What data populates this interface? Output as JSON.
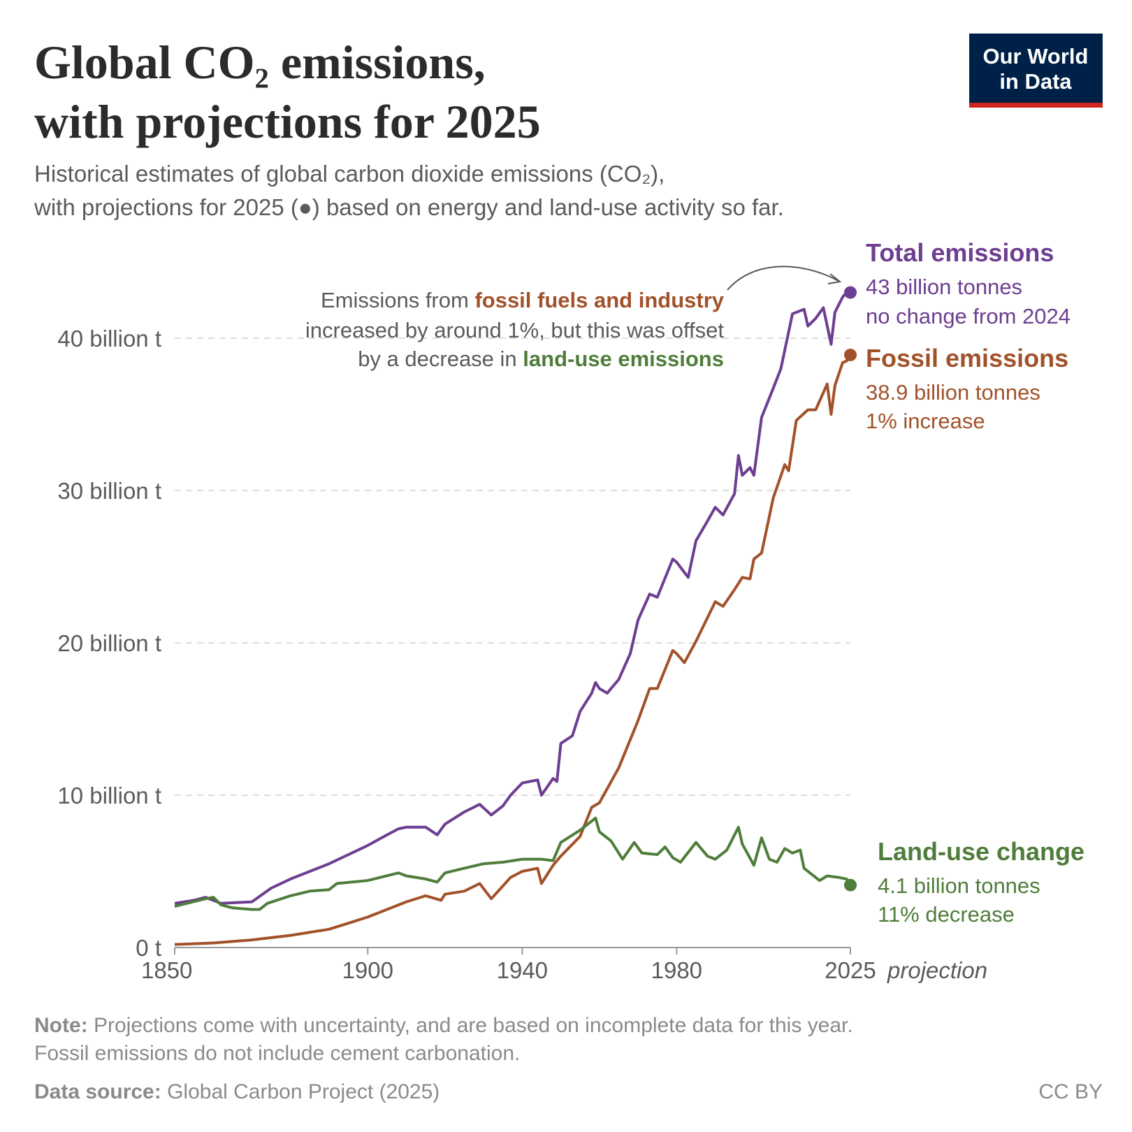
{
  "chart_data": {
    "type": "line",
    "title_lines": [
      "Global CO₂ emissions,",
      "with projections for 2025"
    ],
    "subtitle_lines": [
      "Historical estimates of global carbon dioxide emissions (CO₂),",
      "with projections for 2025 (●) based on energy and land-use activity so far."
    ],
    "logo_lines": [
      "Our World",
      "in Data"
    ],
    "xlim": [
      1850,
      2025
    ],
    "xticks": [
      1850,
      1900,
      1940,
      1980,
      2025
    ],
    "x_projection_label": "projection",
    "ylim": [
      0,
      43
    ],
    "yticks": [
      {
        "value": 0,
        "label": "0 t"
      },
      {
        "value": 10,
        "label": "10 billion t"
      },
      {
        "value": 20,
        "label": "20 billion t"
      },
      {
        "value": 30,
        "label": "30 billion t"
      },
      {
        "value": 40,
        "label": "40 billion t"
      }
    ],
    "grid": true,
    "annotation": {
      "lines": [
        [
          {
            "text": "Emissions from "
          },
          {
            "text": "fossil fuels and industry",
            "series": 1
          }
        ],
        [
          {
            "text": "increased by around 1%, but this was offset"
          }
        ],
        [
          {
            "text": "by a decrease in "
          },
          {
            "text": "land-use emissions",
            "series": 2
          }
        ]
      ]
    },
    "series": [
      {
        "name": "Total emissions",
        "color": "#6d3e91",
        "end_label": "43 billion tonnes",
        "change": "no change from 2024",
        "x": [
          1850,
          1855,
          1858,
          1862,
          1870,
          1875,
          1880,
          1885,
          1890,
          1895,
          1900,
          1905,
          1908,
          1910,
          1915,
          1918,
          1920,
          1925,
          1929,
          1932,
          1935,
          1937,
          1940,
          1944,
          1945,
          1948,
          1949,
          1950,
          1953,
          1955,
          1958,
          1959,
          1960,
          1962,
          1965,
          1968,
          1970,
          1973,
          1975,
          1979,
          1980,
          1983,
          1985,
          1988,
          1990,
          1992,
          1995,
          1996,
          1997,
          1999,
          2000,
          2002,
          2005,
          2007,
          2010,
          2013,
          2014,
          2016,
          2018,
          2020,
          2021,
          2023,
          2024,
          2025
        ],
        "values": [
          2.9,
          3.1,
          3.3,
          2.9,
          3.0,
          3.9,
          4.5,
          5.0,
          5.5,
          6.1,
          6.7,
          7.4,
          7.8,
          7.9,
          7.9,
          7.4,
          8.1,
          8.9,
          9.4,
          8.7,
          9.3,
          10.0,
          10.8,
          11.0,
          10.0,
          11.1,
          10.9,
          13.4,
          13.9,
          15.5,
          16.7,
          17.4,
          17.0,
          16.7,
          17.6,
          19.3,
          21.5,
          23.2,
          23.0,
          25.5,
          25.3,
          24.3,
          26.7,
          28.0,
          28.9,
          28.4,
          29.8,
          32.3,
          31.0,
          31.5,
          31.0,
          34.8,
          36.7,
          38.0,
          41.6,
          41.9,
          40.8,
          41.3,
          42.0,
          39.6,
          41.7,
          42.7,
          43.0,
          43.0
        ]
      },
      {
        "name": "Fossil emissions",
        "color": "#a2522a",
        "end_label": "38.9 billion tonnes",
        "change": "1% increase",
        "x": [
          1850,
          1860,
          1870,
          1880,
          1890,
          1900,
          1905,
          1910,
          1915,
          1919,
          1920,
          1925,
          1929,
          1932,
          1937,
          1940,
          1944,
          1945,
          1948,
          1950,
          1955,
          1958,
          1960,
          1965,
          1970,
          1973,
          1975,
          1979,
          1980,
          1982,
          1985,
          1990,
          1992,
          1995,
          1997,
          1999,
          2000,
          2002,
          2005,
          2008,
          2009,
          2011,
          2014,
          2016,
          2019,
          2020,
          2021,
          2023,
          2024,
          2025
        ],
        "values": [
          0.2,
          0.3,
          0.5,
          0.8,
          1.2,
          2.0,
          2.5,
          3.0,
          3.4,
          3.1,
          3.5,
          3.7,
          4.2,
          3.2,
          4.6,
          5.0,
          5.2,
          4.2,
          5.4,
          6.0,
          7.3,
          9.2,
          9.5,
          11.8,
          14.9,
          17.0,
          17.0,
          19.5,
          19.3,
          18.7,
          20.1,
          22.7,
          22.4,
          23.5,
          24.3,
          24.2,
          25.5,
          25.9,
          29.5,
          31.7,
          31.3,
          34.6,
          35.3,
          35.3,
          37.0,
          35.0,
          36.9,
          38.4,
          38.5,
          38.9
        ]
      },
      {
        "name": "Land-use change",
        "color": "#4f7d3b",
        "end_label": "4.1 billion tonnes",
        "change": "11% decrease",
        "x": [
          1850,
          1858,
          1860,
          1862,
          1865,
          1870,
          1872,
          1874,
          1880,
          1885,
          1890,
          1892,
          1900,
          1908,
          1910,
          1915,
          1918,
          1920,
          1925,
          1930,
          1935,
          1940,
          1945,
          1948,
          1950,
          1955,
          1959,
          1960,
          1963,
          1966,
          1969,
          1971,
          1975,
          1977,
          1979,
          1981,
          1985,
          1988,
          1990,
          1993,
          1996,
          1997,
          2000,
          2002,
          2004,
          2006,
          2008,
          2010,
          2012,
          2013,
          2016,
          2017,
          2019,
          2022,
          2024,
          2025
        ],
        "values": [
          2.7,
          3.2,
          3.3,
          2.8,
          2.6,
          2.5,
          2.5,
          2.9,
          3.4,
          3.7,
          3.8,
          4.2,
          4.4,
          4.9,
          4.7,
          4.5,
          4.3,
          4.9,
          5.2,
          5.5,
          5.6,
          5.8,
          5.8,
          5.7,
          6.9,
          7.7,
          8.5,
          7.6,
          7.0,
          5.8,
          6.9,
          6.2,
          6.1,
          6.6,
          5.9,
          5.6,
          6.9,
          6.0,
          5.8,
          6.4,
          7.9,
          6.8,
          5.4,
          7.2,
          5.8,
          5.6,
          6.5,
          6.2,
          6.4,
          5.2,
          4.6,
          4.4,
          4.7,
          4.6,
          4.5,
          4.1
        ]
      }
    ],
    "note_label": "Note:",
    "note_lines": [
      "Projections come with uncertainty, and are based on incomplete data for this year.",
      "Fossil emissions do not include cement carbonation."
    ],
    "source_label": "Data source:",
    "source": "Global Carbon Project (2025)",
    "license": "CC BY"
  }
}
